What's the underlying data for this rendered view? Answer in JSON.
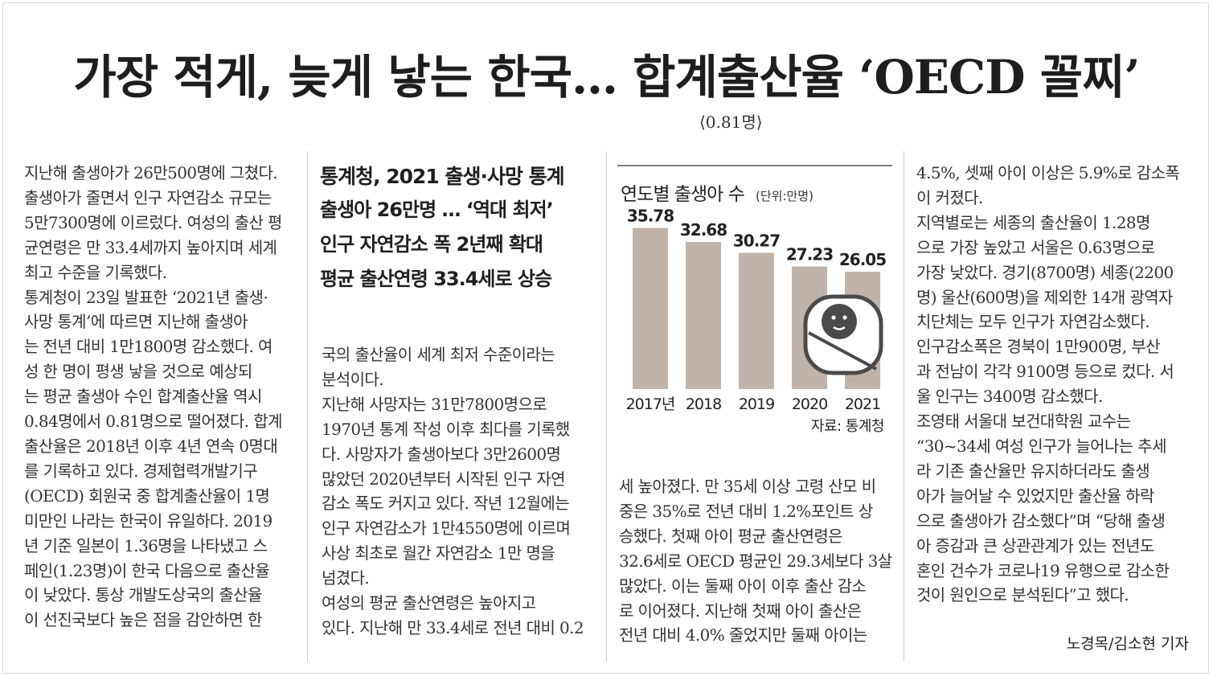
{
  "headline": "가장 적게, 늦게 낳는 한국… 합계출산율 ‘OECD 꼴찌’",
  "headline_note": "⟨0.81명⟩",
  "col1": [
    "지난해 출생아가 26만500명에 그쳤다.",
    "출생아가 줄면서 인구 자연감소 규모는",
    "5만7300명에 이르렀다. 여성의 출산 평",
    "균연령은 만 33.4세까지 높아지며 세계",
    "최고 수준을 기록했다.",
    "  통계청이 23일 발표한 ‘2021년 출생·",
    "사망 통계’에 따르면 지난해  출생아",
    "는 전년 대비 1만1800명 감소했다. 여",
    "성 한 명이 평생 낳을 것으로 예상되",
    "는 평균 출생아 수인 합계출산율 역시",
    "0.84명에서 0.81명으로 떨어졌다. 합계",
    "출산율은 2018년 이후 4년 연속 0명대",
    "를 기록하고 있다. 경제협력개발기구",
    "(OECD) 회원국 중 합계출산율이 1명",
    "미만인 나라는 한국이 유일하다. 2019",
    "년 기준 일본이 1.36명을 나타냈고 스",
    "페인(1.23명)이 한국 다음으로 출산율",
    "이 낮았다. 통상 개발도상국의 출산율",
    "이 선진국보다 높은 점을 감안하면 한"
  ],
  "subhead": {
    "line1": "통계청, 2021 출생·사망 통계",
    "line2": "출생아 26만명 … ‘역대 최저’",
    "line3": "인구 자연감소 폭 2년째 확대",
    "line4": "평균 출산연령 33.4세로 상승"
  },
  "col2": [
    "국의 출산율이 세계 최저 수준이라는",
    "분석이다.",
    "  지난해 사망자는 31만7800명으로",
    "1970년 통계 작성 이후 최다를 기록했",
    "다. 사망자가 출생아보다 3만2600명",
    "많았던 2020년부터 시작된 인구 자연",
    "감소 폭도 커지고 있다. 작년 12월에는",
    "인구 자연감소가 1만4550명에 이르며",
    "사상 최초로 월간 자연감소 1만 명을",
    "넘겼다.",
    "  여성의 평균 출산연령은 높아지고",
    "있다. 지난해 만 33.4세로 전년 대비 0.2"
  ],
  "chart_data": {
    "type": "bar",
    "title": "연도별 출생아 수",
    "unit": "(단위:만명)",
    "categories": [
      "2017년",
      "2018",
      "2019",
      "2020",
      "2021"
    ],
    "values": [
      35.78,
      32.68,
      30.27,
      27.23,
      26.05
    ],
    "value_labels": [
      "35.78",
      "32.68",
      "30.27",
      "27.23",
      "26.05"
    ],
    "ylim": [
      0,
      37.5
    ],
    "source": "자료: 통계청",
    "bar_color": "#bfb3aa",
    "icon": "baby-icon"
  },
  "col3": [
    "세 높아졌다. 만 35세 이상 고령 산모 비",
    "중은 35%로 전년 대비 1.2%포인트 상",
    "승했다. 첫째 아이 평균 출산연령은",
    "32.6세로 OECD 평균인 29.3세보다 3살",
    "많았다. 이는 둘째 아이 이후 출산 감소",
    "로 이어졌다. 지난해 첫째 아이 출산은",
    "전년 대비 4.0% 줄었지만 둘째 아이는"
  ],
  "col4": [
    "4.5%, 셋째 아이 이상은 5.9%로 감소폭",
    "이 커졌다.",
    "  지역별로는 세종의 출산율이 1.28명",
    "으로 가장 높았고 서울은 0.63명으로",
    "가장 낮았다. 경기(8700명) 세종(2200",
    "명) 울산(600명)을 제외한 14개 광역자",
    "치단체는 모두 인구가 자연감소했다.",
    "인구감소폭은 경북이 1만900명, 부산",
    "과 전남이 각각 9100명 등으로 컸다. 서",
    "울 인구는 3400명 감소했다.",
    "  조영태 서울대 보건대학원 교수는",
    "“30~34세 여성 인구가 늘어나는 추세",
    "라 기존 출산율만 유지하더라도 출생",
    "아가 늘어날 수 있었지만 출산율 하락",
    "으로 출생아가 감소했다”며 “당해 출생",
    "아 증감과 큰 상관관계가 있는 전년도",
    "혼인 건수가 코로나19 유행으로 감소한",
    "것이 원인으로 분석된다”고 했다."
  ],
  "byline": "노경목/김소현 기자"
}
